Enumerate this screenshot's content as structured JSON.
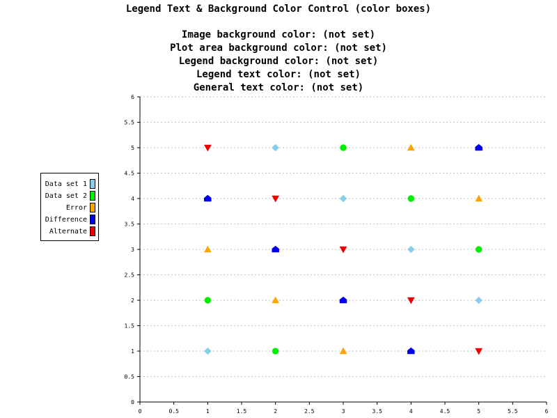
{
  "chart_data": {
    "type": "scatter",
    "title": "Legend Text & Background Color Control (color boxes)",
    "subtitles": [
      "Image background color: (not set)",
      "Plot area background color: (not set)",
      "Legend background color: (not set)",
      "Legend text color: (not set)",
      "General text color: (not set)"
    ],
    "xlim": [
      0,
      6
    ],
    "ylim": [
      0,
      6
    ],
    "xticks": [
      "0",
      "0.5",
      "1",
      "1.5",
      "2",
      "2.5",
      "3",
      "3.5",
      "4",
      "4.5",
      "5",
      "5.5",
      "6"
    ],
    "yticks": [
      "0",
      "0.5",
      "1",
      "1.5",
      "2",
      "2.5",
      "3",
      "3.5",
      "4",
      "4.5",
      "5",
      "5.5",
      "6"
    ],
    "grid": true,
    "legend_position": "left",
    "series": [
      {
        "name": "Data set 1",
        "color": "#87ceeb",
        "marker": "diamond",
        "x": [
          1,
          2,
          3,
          4,
          5
        ],
        "y": [
          1,
          5,
          4,
          3,
          2
        ]
      },
      {
        "name": "Data set 2",
        "color": "#00ee00",
        "marker": "circle",
        "x": [
          1,
          2,
          3,
          4,
          5
        ],
        "y": [
          2,
          1,
          5,
          4,
          3
        ]
      },
      {
        "name": "Error",
        "color": "#ffa500",
        "marker": "triangle-up",
        "x": [
          1,
          2,
          3,
          4,
          5
        ],
        "y": [
          3,
          2,
          1,
          5,
          4
        ]
      },
      {
        "name": "Difference",
        "color": "#0000ee",
        "marker": "house",
        "x": [
          1,
          2,
          3,
          4,
          5
        ],
        "y": [
          4,
          3,
          2,
          1,
          5
        ]
      },
      {
        "name": "Alternate",
        "color": "#ee0000",
        "marker": "triangle-down",
        "x": [
          1,
          2,
          3,
          4,
          5
        ],
        "y": [
          5,
          4,
          3,
          2,
          1
        ]
      }
    ]
  }
}
